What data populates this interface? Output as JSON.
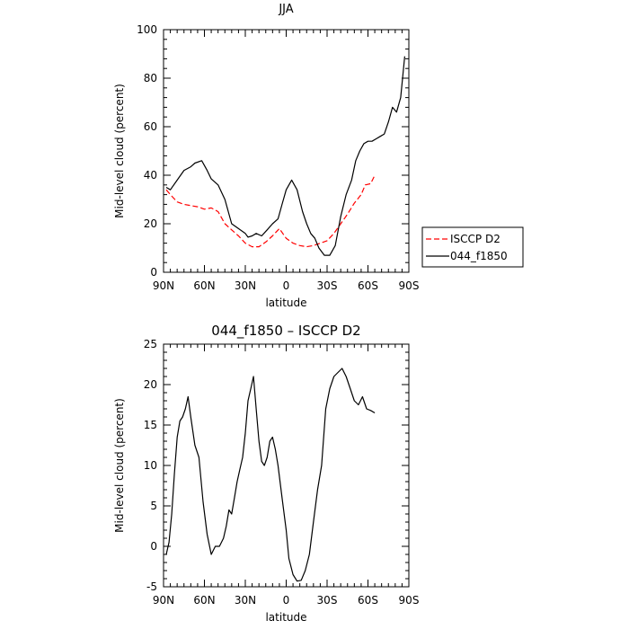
{
  "chart_data": [
    {
      "type": "line",
      "title": "JJA",
      "xlabel": "latitude",
      "ylabel": "Mid-level cloud (percent)",
      "xlim": [
        90,
        -90
      ],
      "ylim": [
        0,
        100
      ],
      "xticks": [
        {
          "value": 90,
          "label": "90N"
        },
        {
          "value": 60,
          "label": "60N"
        },
        {
          "value": 30,
          "label": "30N"
        },
        {
          "value": 0,
          "label": "0"
        },
        {
          "value": -30,
          "label": "30S"
        },
        {
          "value": -60,
          "label": "60S"
        },
        {
          "value": -90,
          "label": "90S"
        }
      ],
      "yticks": [
        0,
        20,
        40,
        60,
        80,
        100
      ],
      "legend_position": "outside-right",
      "series": [
        {
          "name": "ISCCP D2",
          "color": "#ff0000",
          "dash": "dashed",
          "x": [
            88,
            85,
            80,
            75,
            70,
            65,
            60,
            55,
            50,
            45,
            40,
            35,
            30,
            25,
            20,
            15,
            10,
            5,
            0,
            -5,
            -10,
            -15,
            -20,
            -25,
            -30,
            -35,
            -40,
            -45,
            -50,
            -55,
            -58,
            -62,
            -65
          ],
          "y": [
            34,
            32,
            29,
            28,
            27.5,
            27,
            26,
            26.5,
            25,
            20,
            17.5,
            15,
            12,
            10.5,
            10.5,
            12.5,
            15,
            18,
            14,
            12,
            11,
            10.5,
            11,
            12,
            13,
            16,
            20,
            24,
            28.5,
            32,
            36,
            36.5,
            40
          ]
        },
        {
          "name": "044_f1850",
          "color": "#000000",
          "dash": "solid",
          "x": [
            88,
            85,
            80,
            75,
            70,
            67,
            62,
            58,
            55,
            50,
            45,
            40,
            35,
            30,
            28,
            25,
            22,
            18,
            14,
            10,
            6,
            3,
            0,
            -4,
            -8,
            -12,
            -15,
            -18,
            -21,
            -24,
            -28,
            -32,
            -36,
            -40,
            -44,
            -48,
            -51,
            -54,
            -57,
            -60,
            -63,
            -66,
            -69,
            -72,
            -75,
            -78,
            -81,
            -84,
            -87
          ],
          "y": [
            35,
            34,
            38,
            42,
            43.5,
            45,
            46,
            42,
            38.5,
            36,
            30,
            20,
            18,
            16,
            14.5,
            15,
            16,
            15,
            17.5,
            20,
            22,
            28,
            34,
            38,
            34,
            25,
            20,
            16,
            14,
            10,
            7,
            7,
            11,
            23,
            32,
            38,
            46,
            50,
            53,
            54,
            54,
            55,
            56,
            57,
            62,
            68,
            66,
            72,
            89
          ]
        }
      ]
    },
    {
      "type": "line",
      "title": "044_f1850 – ISCCP D2",
      "xlabel": "latitude",
      "ylabel": "Mid-level cloud (percent)",
      "xlim": [
        90,
        -90
      ],
      "ylim": [
        -5,
        25
      ],
      "xticks": [
        {
          "value": 90,
          "label": "90N"
        },
        {
          "value": 60,
          "label": "60N"
        },
        {
          "value": 30,
          "label": "30N"
        },
        {
          "value": 0,
          "label": "0"
        },
        {
          "value": -30,
          "label": "30S"
        },
        {
          "value": -60,
          "label": "60S"
        },
        {
          "value": -90,
          "label": "90S"
        }
      ],
      "yticks": [
        -5,
        0,
        5,
        10,
        15,
        20,
        25
      ],
      "series": [
        {
          "color": "#000000",
          "dash": "solid",
          "x": [
            88,
            86,
            84,
            82,
            80,
            78,
            76,
            74,
            72,
            70,
            67,
            64,
            61,
            58,
            55,
            52,
            49,
            46,
            44,
            42,
            40,
            38,
            36,
            34,
            32,
            30,
            28,
            26,
            24,
            22,
            20,
            18,
            16,
            14,
            12,
            10,
            8,
            6,
            3,
            0,
            -2,
            -5,
            -8,
            -11,
            -14,
            -17,
            -20,
            -23,
            -26,
            -29,
            -32,
            -35,
            -38,
            -41,
            -44,
            -47,
            -50,
            -53,
            -56,
            -59,
            -62,
            -65
          ],
          "y": [
            -1,
            0.5,
            4,
            9,
            13.5,
            15.5,
            16,
            17,
            18.5,
            16,
            12.5,
            11,
            5.5,
            1.5,
            -1,
            0,
            0,
            1,
            2.5,
            4.5,
            4,
            6,
            8,
            9.5,
            11,
            14,
            18,
            19.5,
            21,
            17,
            13,
            10.5,
            10,
            11,
            13,
            13.5,
            12,
            10,
            6,
            2,
            -1.5,
            -3.5,
            -4.3,
            -4.2,
            -3,
            -1,
            3,
            7,
            10,
            17,
            19.5,
            21,
            21.5,
            22,
            21,
            19.5,
            18,
            17.5,
            18.5,
            17,
            16.8,
            16.5
          ]
        }
      ]
    }
  ]
}
